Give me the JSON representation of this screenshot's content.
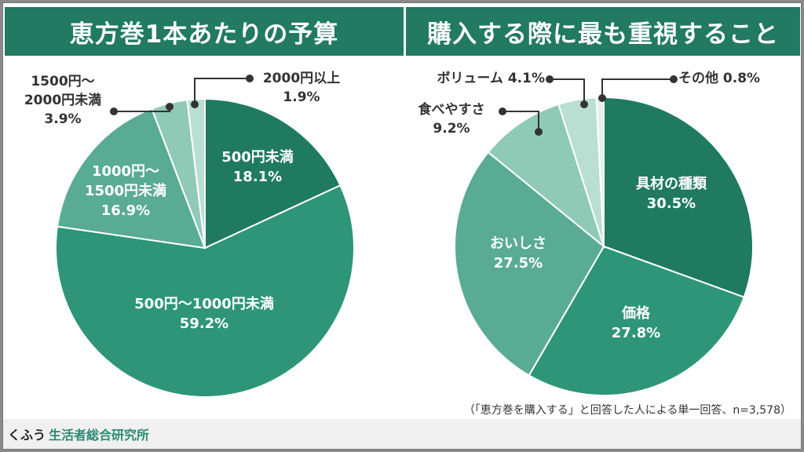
{
  "chart_data": [
    {
      "type": "pie",
      "title": "恵方巻1本あたりの予算",
      "categories": [
        "500円未満",
        "500円〜1000円未満",
        "1000円〜1500円未満",
        "1500円〜2000円未満",
        "2000円以上"
      ],
      "values": [
        18.1,
        59.2,
        16.9,
        3.9,
        1.9
      ],
      "colors": [
        "#1f7a60",
        "#2e9578",
        "#5aab94",
        "#8fcab7",
        "#b9dfd2"
      ],
      "labels": {
        "l0a": "500円未満",
        "l0b": "18.1%",
        "l1a": "500円〜1000円未満",
        "l1b": "59.2%",
        "l2a": "1000円〜",
        "l2b": "1500円未満",
        "l2c": "16.9%",
        "l3a": "1500円〜",
        "l3b": "2000円未満",
        "l3c": "3.9%",
        "l4a": "2000円以上",
        "l4b": "1.9%"
      }
    },
    {
      "type": "pie",
      "title": "購入する際に最も重視すること",
      "categories": [
        "具材の種類",
        "価格",
        "おいしさ",
        "食べやすさ",
        "ボリューム",
        "その他"
      ],
      "values": [
        30.5,
        27.8,
        27.5,
        9.2,
        4.1,
        0.8
      ],
      "colors": [
        "#1f7a60",
        "#2e9578",
        "#5aab94",
        "#8fcab7",
        "#b9dfd2",
        "#e3f2ec"
      ],
      "labels": {
        "r0a": "具材の種類",
        "r0b": "30.5%",
        "r1a": "価格",
        "r1b": "27.8%",
        "r2a": "おいしさ",
        "r2b": "27.5%",
        "r3a": "食べやすさ",
        "r3b": "9.2%",
        "r4": "ボリューム 4.1%",
        "r5": "その他 0.8%"
      }
    }
  ],
  "note": "（「恵方巻を購入する」と回答した人による単一回答、n=3,578）",
  "footer": {
    "brand_a": "くふう",
    "brand_b": "生活者総合研究所"
  }
}
